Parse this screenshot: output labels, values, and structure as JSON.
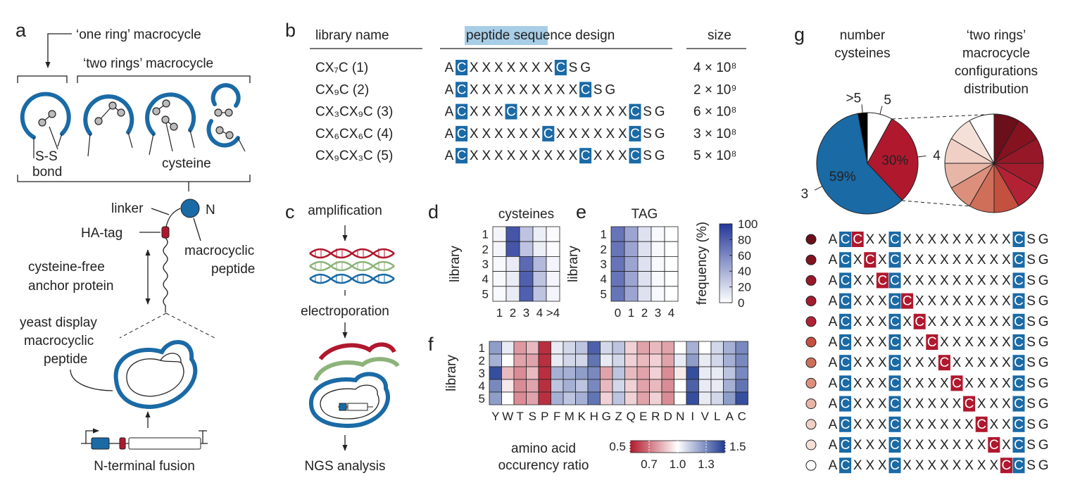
{
  "panel_a": {
    "label": "a",
    "one_ring": "‘one ring’ macrocycle",
    "two_rings": "‘two rings’ macrocycle",
    "ss_bond": [
      "S-S",
      "bond"
    ],
    "cysteine": "cysteine",
    "linker": "linker",
    "n_terminus": "N",
    "ha_tag": "HA-tag",
    "macrocyclic_peptide": [
      "macrocyclic",
      "peptide"
    ],
    "anchor": [
      "cysteine-free",
      "anchor protein"
    ],
    "yeast_display": [
      "yeast display",
      "macrocyclic",
      "peptide"
    ],
    "fusion": "N-terminal fusion"
  },
  "panel_b": {
    "label": "b",
    "headers": [
      "library name",
      "peptide sequence design",
      "size"
    ],
    "highlight_color": "#1a6aa6",
    "rows": [
      {
        "name": "CX₇C (1)",
        "sequence": "ACXXXXXXXCSG",
        "size": "4 × 10⁸"
      },
      {
        "name": "CX₉C (2)",
        "sequence": "ACXXXXXXXXXCSG",
        "size": "2 × 10⁹"
      },
      {
        "name": "CX₃CX₉C (3)",
        "sequence": "ACXXXCXXXXXXXXXCSG",
        "size": "6 × 10⁸"
      },
      {
        "name": "CX₆CX₆C (4)",
        "sequence": "ACXXXXXXCXXXXXXCSG",
        "size": "3 × 10⁸"
      },
      {
        "name": "CX₉CX₃C (5)",
        "sequence": "ACXXXXXXXXXCXXXCSG",
        "size": "5 × 10⁸"
      }
    ]
  },
  "panel_c": {
    "label": "c",
    "steps": [
      "amplification",
      "electroporation",
      "NGS analysis"
    ]
  },
  "panel_d": {
    "label": "d",
    "type": "heatmap",
    "title": "cysteines",
    "ylabel": "library",
    "rows": [
      "1",
      "2",
      "3",
      "4",
      "5"
    ],
    "columns": [
      "1",
      "2",
      "3",
      "4",
      ">4"
    ],
    "values": [
      [
        5,
        85,
        30,
        8,
        2
      ],
      [
        5,
        85,
        30,
        8,
        2
      ],
      [
        3,
        10,
        75,
        35,
        5
      ],
      [
        3,
        10,
        80,
        30,
        5
      ],
      [
        3,
        10,
        80,
        30,
        5
      ]
    ]
  },
  "panel_e": {
    "label": "e",
    "type": "heatmap",
    "title": "TAG",
    "ylabel": "library",
    "rows": [
      "1",
      "2",
      "3",
      "4",
      "5"
    ],
    "columns": [
      "0",
      "1",
      "2",
      "3",
      "4"
    ],
    "values": [
      [
        70,
        45,
        15,
        3,
        0
      ],
      [
        70,
        45,
        15,
        3,
        0
      ],
      [
        70,
        45,
        15,
        3,
        0
      ],
      [
        70,
        45,
        15,
        3,
        0
      ],
      [
        70,
        45,
        15,
        3,
        0
      ]
    ],
    "colorbar": {
      "label": "frequency (%)",
      "clim": [
        0,
        100
      ],
      "ticks": [
        0,
        20,
        40,
        60,
        80,
        100
      ],
      "cmap": [
        "#ffffff",
        "#24389a"
      ]
    }
  },
  "panel_f": {
    "label": "f",
    "type": "heatmap",
    "ylabel": "library",
    "xlabel": [
      "amino acid",
      "occurency ratio"
    ],
    "rows": [
      "1",
      "2",
      "3",
      "4",
      "5"
    ],
    "columns": [
      "Y",
      "W",
      "T",
      "S",
      "P",
      "F",
      "M",
      "K",
      "H",
      "G",
      "Z",
      "Q",
      "E",
      "R",
      "D",
      "N",
      "I",
      "V",
      "L",
      "A",
      "C"
    ],
    "values": [
      [
        1.25,
        1.05,
        0.78,
        0.85,
        0.55,
        1.05,
        1.1,
        1.15,
        1.4,
        1.1,
        1.15,
        0.9,
        0.8,
        0.85,
        0.8,
        1.0,
        1.2,
        1.0,
        1.1,
        1.2,
        1.3
      ],
      [
        1.2,
        1.0,
        0.8,
        0.8,
        0.55,
        1.05,
        1.1,
        1.1,
        1.35,
        1.05,
        1.1,
        0.9,
        0.85,
        0.9,
        0.8,
        1.05,
        1.25,
        1.05,
        1.1,
        1.2,
        1.3
      ],
      [
        1.45,
        0.85,
        0.75,
        0.85,
        0.55,
        1.2,
        1.2,
        1.25,
        1.3,
        0.8,
        1.15,
        0.85,
        0.8,
        0.9,
        0.75,
        0.95,
        1.45,
        1.05,
        1.05,
        1.15,
        1.3
      ],
      [
        1.3,
        0.95,
        0.75,
        0.8,
        0.55,
        1.15,
        1.2,
        1.15,
        1.3,
        0.85,
        1.1,
        0.9,
        0.8,
        0.85,
        0.75,
        1.0,
        1.4,
        1.05,
        1.05,
        1.2,
        1.35
      ],
      [
        1.25,
        1.0,
        0.75,
        0.8,
        0.55,
        1.2,
        1.15,
        1.2,
        1.35,
        0.9,
        1.15,
        0.9,
        0.8,
        0.9,
        0.75,
        1.0,
        1.45,
        1.05,
        1.1,
        1.25,
        1.45
      ]
    ],
    "colorbar": {
      "clim": [
        0.5,
        1.5
      ],
      "ticks": [
        0.5,
        0.7,
        {
          "value": 1,
          "label": "1.0"
        },
        1.3,
        1.5
      ],
      "cmap": [
        "#b2182b",
        "#ffffff",
        "#1f3a93"
      ]
    }
  },
  "panel_g": {
    "label": "g",
    "pie": {
      "type": "pie",
      "title": [
        "number",
        "cysteines"
      ],
      "categories": [
        "5",
        "4",
        "3",
        ">5"
      ],
      "values": [
        8,
        30,
        59,
        3
      ],
      "value_labels": [
        null,
        "30%",
        "59%",
        null
      ],
      "colors": [
        "#ffffff",
        "#b0182e",
        "#1a6aa6",
        "#000000"
      ]
    },
    "configurations": {
      "type": "pie",
      "title": [
        "‘two rings’",
        "macrocycle",
        "configurations",
        "distribution"
      ],
      "values": [
        8.3,
        8.3,
        8.3,
        8.3,
        8.3,
        8.3,
        8.3,
        8.3,
        8.3,
        8.3,
        8.3,
        8.3
      ],
      "colors": [
        "#6b0f1a",
        "#85121f",
        "#961828",
        "#a31c2e",
        "#b22234",
        "#c4503f",
        "#cf6f5a",
        "#dc907c",
        "#e8b6a6",
        "#f0cfc4",
        "#f5e0d8",
        "#ffffff"
      ]
    },
    "highlight_color": "#1a6aa6",
    "red_color": "#b0182e",
    "rows": [
      {
        "sequence": "ACCXXCXXXXXXXXXCSG",
        "red_position": 2
      },
      {
        "sequence": "ACXCXCXXXXXXXXXCSG",
        "red_position": 3
      },
      {
        "sequence": "ACXXCCXXXXXXXXXCSG",
        "red_position": 4
      },
      {
        "sequence": "ACXXXCCXXXXXXXXCSG",
        "red_position": 6
      },
      {
        "sequence": "ACXXXCXCXXXXXXXCSG",
        "red_position": 7
      },
      {
        "sequence": "ACXXXCXXCXXXXXXCSG",
        "red_position": 8
      },
      {
        "sequence": "ACXXXCXXXCXXXXXCSG",
        "red_position": 9
      },
      {
        "sequence": "ACXXXCXXXXCXXXXCSG",
        "red_position": 10
      },
      {
        "sequence": "ACXXXCXXXXXCXXXCSG",
        "red_position": 11
      },
      {
        "sequence": "ACXXXCXXXXXXCXXCSG",
        "red_position": 12
      },
      {
        "sequence": "ACXXXCXXXXXXXCXCSG",
        "red_position": 13
      },
      {
        "sequence": "ACXXXCXXXXXXXXCCSG",
        "red_position": 14
      }
    ]
  }
}
